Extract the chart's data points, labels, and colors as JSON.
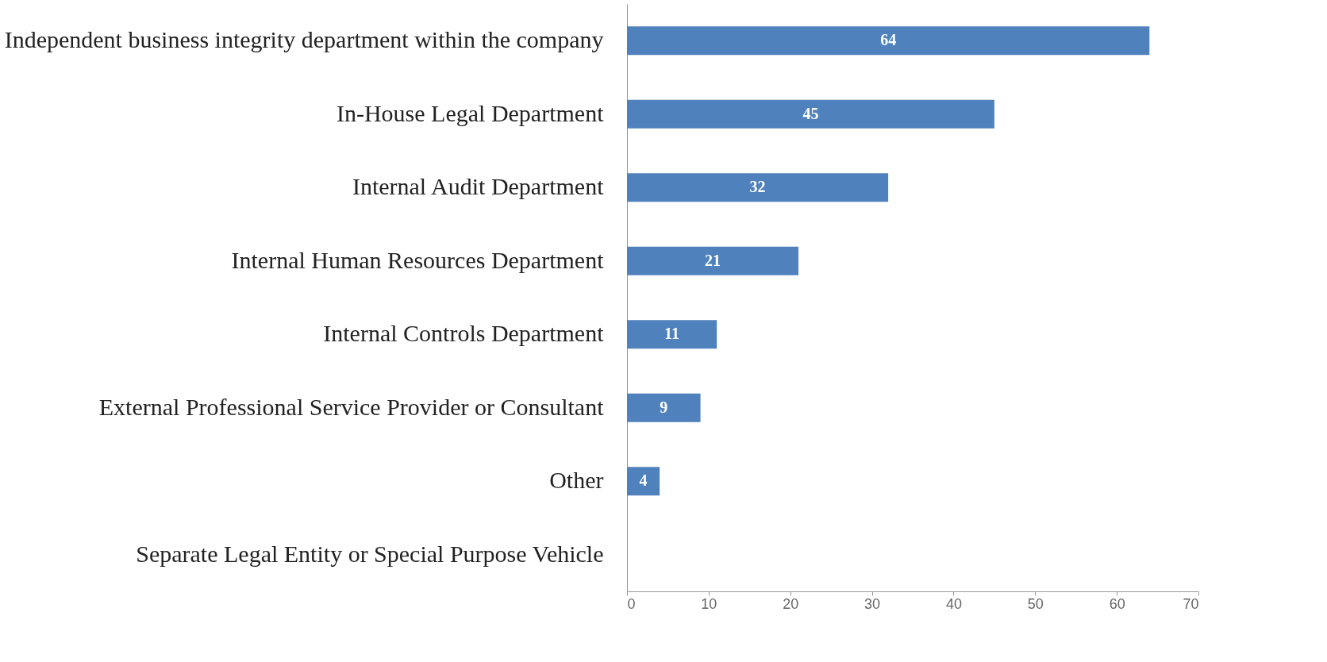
{
  "chart_data": {
    "type": "bar",
    "orientation": "horizontal",
    "categories": [
      "Independent business integrity department within the company",
      "In-House Legal Department",
      "Internal Audit Department",
      "Internal Human Resources Department",
      "Internal Controls Department",
      "External Professional Service Provider or Consultant",
      "Other",
      "Separate Legal Entity or Special Purpose Vehicle"
    ],
    "values": [
      64,
      45,
      32,
      21,
      11,
      9,
      4,
      null
    ],
    "color": "#4f81bd",
    "xlim": [
      0,
      70
    ],
    "xticks": [
      0,
      10,
      20,
      30,
      40,
      50,
      60,
      70
    ],
    "grid": false,
    "data_labels": true
  }
}
